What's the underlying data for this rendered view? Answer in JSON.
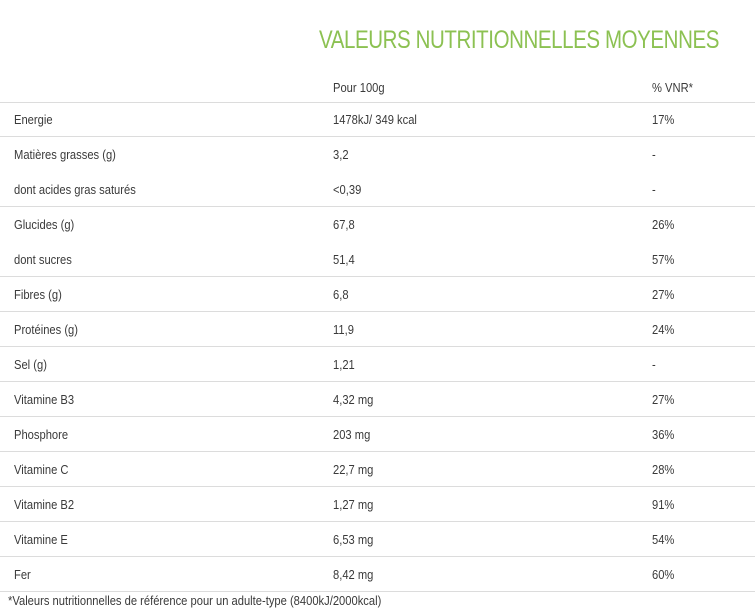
{
  "title": "VALEURS NUTRITIONNELLES MOYENNES",
  "header": {
    "col1": "",
    "col2": "Pour 100g",
    "col3": "% VNR*"
  },
  "rows": [
    {
      "name": "Energie",
      "value": "1478kJ/ 349 kcal",
      "vnr": "17%",
      "line": true
    },
    {
      "name": "Matières grasses (g)",
      "value": "3,2",
      "vnr": "-",
      "line": false
    },
    {
      "name": "dont acides gras saturés",
      "value": "<0,39",
      "vnr": "-",
      "line": true
    },
    {
      "name": "Glucides (g)",
      "value": "67,8",
      "vnr": "26%",
      "line": false
    },
    {
      "name": "dont sucres",
      "value": "51,4",
      "vnr": "57%",
      "line": true
    },
    {
      "name": "Fibres (g)",
      "value": "6,8",
      "vnr": "27%",
      "line": true
    },
    {
      "name": "Protéines (g)",
      "value": "11,9",
      "vnr": "24%",
      "line": true
    },
    {
      "name": "Sel (g)",
      "value": " 1,21",
      "vnr": "-",
      "line": true
    },
    {
      "name": "Vitamine B3",
      "value": "4,32 mg",
      "vnr": "27%",
      "line": true
    },
    {
      "name": "Phosphore",
      "value": "203 mg",
      "vnr": "36%",
      "line": true
    },
    {
      "name": "Vitamine C",
      "value": "22,7 mg",
      "vnr": "28%",
      "line": true
    },
    {
      "name": "Vitamine B2",
      "value": "1,27 mg",
      "vnr": "91%",
      "line": true
    },
    {
      "name": "Vitamine E",
      "value": "6,53 mg",
      "vnr": "54%",
      "line": true
    },
    {
      "name": "Fer",
      "value": "8,42 mg",
      "vnr": "60%",
      "line": true
    }
  ],
  "footnote": "*Valeurs nutritionnelles de référence pour un adulte-type (8400kJ/2000kcal)",
  "colors": {
    "title": "#8cc152",
    "text": "#3a3a3a",
    "rule": "#dcdcdc"
  }
}
